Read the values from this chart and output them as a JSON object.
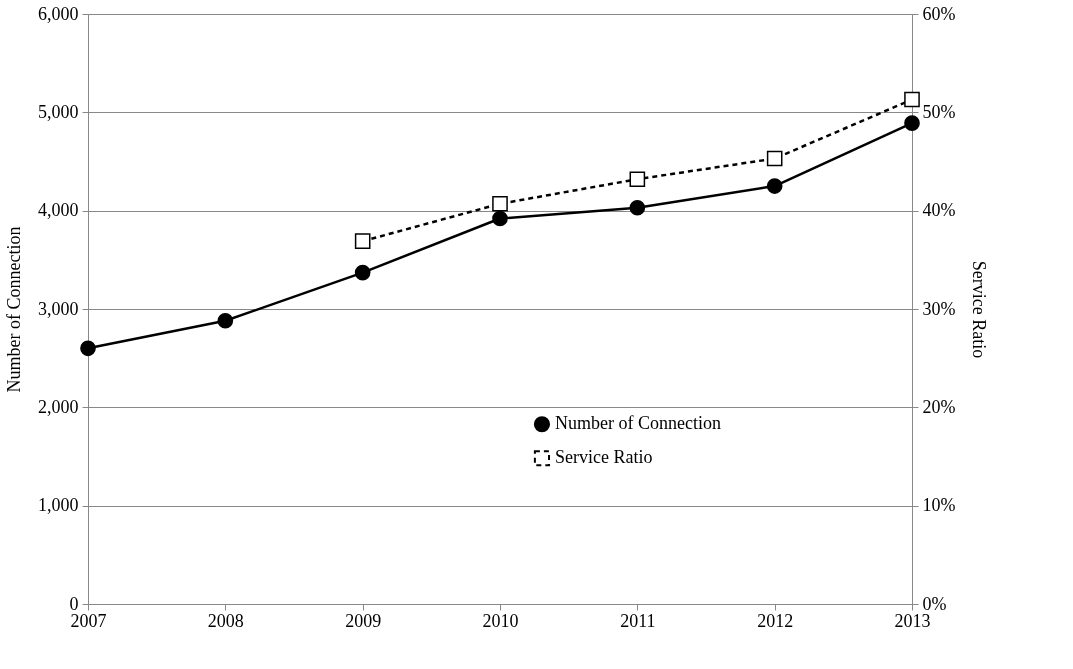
{
  "chart_data": {
    "type": "line",
    "ylabel": "Number of Connection",
    "y2label": "Service Ratio",
    "x": [
      2007,
      2008,
      2009,
      2010,
      2011,
      2012,
      2013
    ],
    "xlim": [
      2007,
      2013
    ],
    "xticks": [
      2007,
      2008,
      2009,
      2010,
      2011,
      2012,
      2013
    ],
    "ylim": [
      0,
      6000
    ],
    "yticks": [
      {
        "value": 0,
        "label": "0"
      },
      {
        "value": 1000,
        "label": "1,000"
      },
      {
        "value": 2000,
        "label": "2,000"
      },
      {
        "value": 3000,
        "label": "3,000"
      },
      {
        "value": 4000,
        "label": "4,000"
      },
      {
        "value": 5000,
        "label": "5,000"
      },
      {
        "value": 6000,
        "label": "6,000"
      }
    ],
    "y2lim": [
      0,
      60
    ],
    "y2ticks": [
      {
        "value": 0,
        "label": "0%"
      },
      {
        "value": 10,
        "label": "10%"
      },
      {
        "value": 20,
        "label": "20%"
      },
      {
        "value": 30,
        "label": "30%"
      },
      {
        "value": 40,
        "label": "40%"
      },
      {
        "value": 50,
        "label": "50%"
      },
      {
        "value": 60,
        "label": "60%"
      }
    ],
    "grid": "y",
    "legend": "bottom right",
    "series": [
      {
        "name": "Number of Connection",
        "color": "#000000",
        "marker": "circle",
        "line_style": "solid",
        "values": [
          2600,
          2880,
          3370,
          3920,
          4030,
          4250,
          4890
        ]
      },
      {
        "name": "Service Ratio",
        "color": "#000000",
        "marker": "square",
        "line_style": "dashed",
        "axis": "y2",
        "values": [
          null,
          null,
          36.9,
          40.7,
          43.2,
          45.3,
          51.3
        ]
      }
    ]
  }
}
